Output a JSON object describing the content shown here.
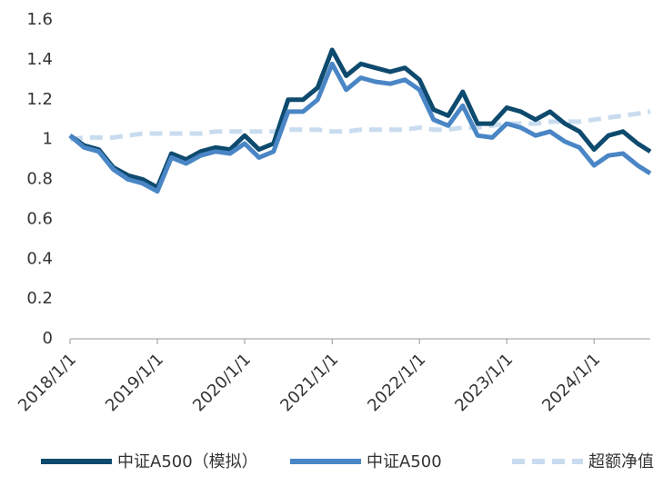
{
  "chart_data": {
    "type": "line",
    "x": [
      "2018-01-01",
      "2018-03-01",
      "2018-05-01",
      "2018-07-01",
      "2018-09-01",
      "2018-11-01",
      "2019-01-01",
      "2019-03-01",
      "2019-05-01",
      "2019-07-01",
      "2019-09-01",
      "2019-11-01",
      "2020-01-01",
      "2020-03-01",
      "2020-05-01",
      "2020-07-01",
      "2020-09-01",
      "2020-11-01",
      "2021-01-01",
      "2021-03-01",
      "2021-05-01",
      "2021-07-01",
      "2021-09-01",
      "2021-11-01",
      "2022-01-01",
      "2022-03-01",
      "2022-05-01",
      "2022-07-01",
      "2022-09-01",
      "2022-11-01",
      "2023-01-01",
      "2023-03-01",
      "2023-05-01",
      "2023-07-01",
      "2023-09-01",
      "2023-11-01",
      "2024-01-01",
      "2024-03-01",
      "2024-05-01",
      "2024-07-01",
      "2024-08-23"
    ],
    "series": [
      {
        "name": "中证A500（模拟）",
        "color": "#0d4a6e",
        "dash": false,
        "values": [
          1.02,
          0.97,
          0.95,
          0.86,
          0.82,
          0.8,
          0.76,
          0.93,
          0.9,
          0.94,
          0.96,
          0.95,
          1.02,
          0.95,
          0.98,
          1.2,
          1.2,
          1.26,
          1.45,
          1.32,
          1.38,
          1.36,
          1.34,
          1.36,
          1.3,
          1.15,
          1.12,
          1.24,
          1.08,
          1.08,
          1.16,
          1.14,
          1.1,
          1.14,
          1.08,
          1.04,
          0.95,
          1.02,
          1.04,
          0.98,
          0.94
        ]
      },
      {
        "name": "中证A500",
        "color": "#4a86c5",
        "dash": false,
        "values": [
          1.02,
          0.96,
          0.94,
          0.85,
          0.8,
          0.78,
          0.74,
          0.91,
          0.88,
          0.92,
          0.94,
          0.93,
          0.98,
          0.91,
          0.94,
          1.14,
          1.14,
          1.2,
          1.38,
          1.25,
          1.31,
          1.29,
          1.28,
          1.3,
          1.25,
          1.1,
          1.07,
          1.17,
          1.02,
          1.01,
          1.08,
          1.06,
          1.02,
          1.04,
          0.99,
          0.96,
          0.87,
          0.92,
          0.93,
          0.87,
          0.83
        ]
      },
      {
        "name": "超额净值",
        "color": "#c9dcef",
        "dash": true,
        "values": [
          1.0,
          1.01,
          1.01,
          1.01,
          1.02,
          1.03,
          1.03,
          1.03,
          1.03,
          1.03,
          1.04,
          1.04,
          1.04,
          1.04,
          1.04,
          1.05,
          1.05,
          1.05,
          1.04,
          1.04,
          1.05,
          1.05,
          1.05,
          1.05,
          1.06,
          1.05,
          1.05,
          1.06,
          1.06,
          1.07,
          1.08,
          1.08,
          1.08,
          1.09,
          1.09,
          1.09,
          1.1,
          1.11,
          1.12,
          1.13,
          1.14
        ]
      }
    ],
    "xlim": [
      "2018-01-01",
      "2024-08-23"
    ],
    "xticks": [
      {
        "value": "2018-01-01",
        "label": "2018/1/1"
      },
      {
        "value": "2019-01-01",
        "label": "2019/1/1"
      },
      {
        "value": "2020-01-01",
        "label": "2020/1/1"
      },
      {
        "value": "2021-01-01",
        "label": "2021/1/1"
      },
      {
        "value": "2022-01-01",
        "label": "2022/1/1"
      },
      {
        "value": "2023-01-01",
        "label": "2023/1/1"
      },
      {
        "value": "2024-01-01",
        "label": "2024/1/1"
      }
    ],
    "ylim": [
      0,
      1.6
    ],
    "yticks": [
      0,
      0.2,
      0.4,
      0.6,
      0.8,
      1,
      1.2,
      1.4,
      1.6
    ],
    "legend": "bottom"
  }
}
